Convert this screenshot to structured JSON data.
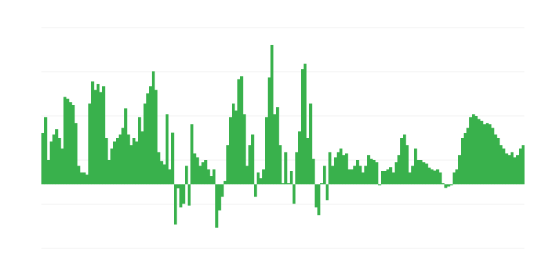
{
  "chart_data": {
    "type": "bar",
    "title": "",
    "xlabel": "",
    "ylabel": "",
    "ylim": [
      -14.5,
      35.5
    ],
    "gridlines": [
      35.5,
      25.5,
      15.5,
      5.5,
      -4.5,
      -14.5
    ],
    "grid": true,
    "bar_color": "#39b14c",
    "grid_color": "#efefef",
    "values": [
      11.6,
      15.2,
      5.5,
      9.7,
      11.3,
      12.5,
      10.5,
      8.1,
      19.8,
      19.4,
      18.6,
      18,
      13.9,
      4.2,
      2.7,
      2.7,
      2.2,
      18.3,
      23.3,
      21.4,
      22.7,
      20.9,
      22.2,
      10.5,
      5.5,
      8.1,
      9.7,
      10.5,
      11.3,
      12.8,
      17.2,
      11.3,
      8.9,
      10.5,
      9.7,
      15.2,
      12,
      18.3,
      20.6,
      22.2,
      25.6,
      21.4,
      7.3,
      5.3,
      4.5,
      15.9,
      3.4,
      11.7,
      -9.1,
      -0.9,
      -5.2,
      -4.4,
      4.2,
      -4.8,
      13.6,
      7,
      6.1,
      4.2,
      5,
      5.5,
      3.4,
      1.9,
      3.4,
      -9.8,
      -5.9,
      -2.8,
      0.8,
      8.9,
      15.2,
      18.3,
      16.7,
      23.8,
      24.5,
      15.9,
      4.2,
      8.9,
      11.3,
      -2.8,
      2.7,
      1.4,
      3.4,
      15.2,
      24.2,
      31.6,
      15.9,
      17.5,
      8.9,
      0.3,
      7.3,
      0.3,
      3,
      -4.4,
      7.3,
      12,
      26.1,
      27.3,
      10.5,
      18.3,
      5.8,
      -5.2,
      -7,
      0.3,
      4.2,
      -3.6,
      7.3,
      4.2,
      6.1,
      7.3,
      8.1,
      6.6,
      7,
      3.4,
      3.4,
      4.2,
      5.5,
      4.2,
      2.7,
      4.2,
      6.6,
      5.8,
      5.5,
      5,
      -0.2,
      3,
      3,
      3.4,
      3.9,
      2.7,
      5,
      6.6,
      10.5,
      11.3,
      8.9,
      2.7,
      4.2,
      8.1,
      5.5,
      5.5,
      5,
      4.7,
      3.8,
      3.4,
      3.1,
      3.4,
      2.7,
      0.3,
      -0.8,
      -0.5,
      -0.2,
      2.7,
      3.4,
      6.6,
      10.5,
      11.6,
      12.8,
      15.2,
      15.9,
      15.5,
      14.8,
      14.4,
      13.6,
      13.9,
      13.6,
      12.8,
      11.3,
      10.5,
      8.9,
      8.1,
      7,
      6.6,
      7.3,
      6.1,
      6.6,
      8.1,
      8.9
    ]
  }
}
